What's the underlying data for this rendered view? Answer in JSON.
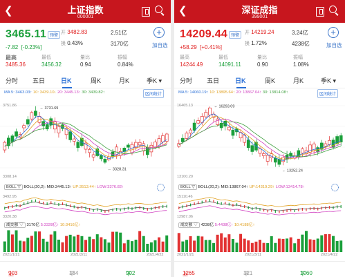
{
  "colors": {
    "up": "#e23232",
    "down": "#1a9f3a",
    "header": "#c7161e",
    "accent": "#2a6fd6",
    "ma5": "#2a6fd6",
    "ma10": "#e0a020",
    "ma20": "#d040c0",
    "ma30": "#40a040"
  },
  "panels": [
    {
      "title": "上证指数",
      "code": "000001",
      "price": "3465.11",
      "badge": "预警",
      "change": "-7.82",
      "change_pct": "[-0.23%]",
      "open_l": "开",
      "open": "3482.83",
      "vol_amt": "2.51亿",
      "turn_l": "换",
      "turn": "0.43%",
      "amount": "3170亿",
      "high_l": "最高",
      "high": "3485.36",
      "low_l": "最低",
      "low": "3456.32",
      "ratio_l": "量比",
      "ratio": "0.94",
      "amp_l": "振幅",
      "amp": "0.84%",
      "add_label": "加自选",
      "tabs": [
        "分时",
        "五日",
        "日K",
        "周K",
        "月K",
        "季K ▾"
      ],
      "active_tab": "日K",
      "ma5": "MA 5: 3463.03↑",
      "ma10": "10: 3439.10↓",
      "ma20": "20: 3445.13↑",
      "ma30": "30: 3439.82↑",
      "range_btn": "区间统计",
      "high_mark": "3731.69",
      "low_mark": "3328.31",
      "y_top": "3751.86",
      "y_bot": "3308.14",
      "boll_tag": "BOLL ▽",
      "boll_p": "BOLL(20,2):",
      "boll_mid": "MID:3445.13↑",
      "boll_up": "UP:3513.44↑",
      "boll_low": "LOW:3376.82↑",
      "boll_top": "3492.95",
      "boll_bot": "3320.38",
      "vol_tag": "成交额 ▽",
      "vol_amount": "3170亿",
      "vol_m5": "5:3328亿↑",
      "vol_m10": "10:3416亿↑",
      "date_l": "2021/1/21",
      "date_m": "2021/3/11",
      "date_r": "2021/4/22",
      "up_l": "上涨",
      "up_n": "903家",
      "flat_l": "平盘",
      "flat_n": "134家",
      "down_l": "下跌",
      "down_n": "902家"
    },
    {
      "title": "深证成指",
      "code": "399001",
      "price": "14209.44",
      "badge": "预警",
      "change": "+58.29",
      "change_pct": "[+0.41%]",
      "open_l": "开",
      "open": "14219.24",
      "vol_amt": "3.24亿",
      "turn_l": "换",
      "turn": "1.72%",
      "amount": "4238亿",
      "high_l": "最高",
      "high": "14244.49",
      "low_l": "最低",
      "low": "14091.11",
      "ratio_l": "量比",
      "ratio": "0.90",
      "amp_l": "振幅",
      "amp": "1.08%",
      "add_label": "加自选",
      "tabs": [
        "分时",
        "五日",
        "日K",
        "周K",
        "月K",
        "季K ▾"
      ],
      "active_tab": "日K",
      "ma5": "MA 5: 14060.19↑",
      "ma10": "10: 13895.64↑",
      "ma20": "20: 13867.04↑",
      "ma30": "30: 13814.08↑",
      "range_btn": "区间统计",
      "high_mark": "16293.09",
      "low_mark": "13252.24",
      "y_top": "16465.13",
      "y_bot": "13100.20",
      "boll_tag": "BOLL ▽",
      "boll_p": "BOLL(20,2):",
      "boll_mid": "MID:13867.04↑",
      "boll_up": "UP:14319.29↑",
      "boll_low": "LOW:13414.78↑",
      "boll_top": "15110.46",
      "boll_bot": "12987.06",
      "vol_tag": "成交额 ▽",
      "vol_amount": "4238亿",
      "vol_m5": "5:4438亿↑",
      "vol_m10": "10:4188亿↑",
      "date_l": "2021/1/21",
      "date_m": "2021/3/11",
      "date_r": "2021/4/22",
      "up_l": "上涨",
      "up_n": "1265家",
      "flat_l": "平盘",
      "flat_n": "121家",
      "down_l": "下跌",
      "down_n": "1060家"
    }
  ]
}
